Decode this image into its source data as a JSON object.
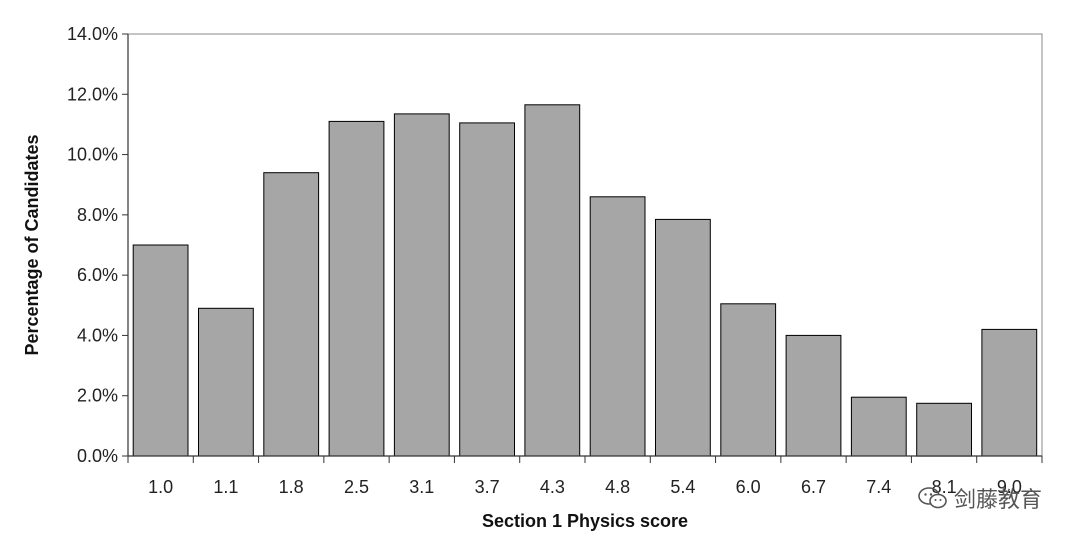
{
  "chart_data": {
    "type": "bar",
    "xlabel": "Section 1 Physics score",
    "ylabel": "Percentage of Candidates",
    "categories": [
      "1.0",
      "1.1",
      "1.8",
      "2.5",
      "3.1",
      "3.7",
      "4.3",
      "4.8",
      "5.4",
      "6.0",
      "6.7",
      "7.4",
      "8.1",
      "9.0"
    ],
    "values": [
      7.0,
      4.9,
      9.4,
      11.1,
      11.35,
      11.05,
      11.65,
      8.6,
      7.85,
      5.05,
      4.0,
      1.95,
      1.75,
      4.2
    ],
    "ylim": [
      0,
      14
    ],
    "yticks": [
      "0.0%",
      "2.0%",
      "4.0%",
      "6.0%",
      "8.0%",
      "10.0%",
      "12.0%",
      "14.0%"
    ],
    "ytick_values": [
      0,
      2,
      4,
      6,
      8,
      10,
      12,
      14
    ],
    "bar_color": "#a6a6a6",
    "bar_edge_color": "#000000",
    "grid": false
  },
  "watermark": {
    "text": "剑藤教育",
    "icon": "wechat-icon"
  }
}
